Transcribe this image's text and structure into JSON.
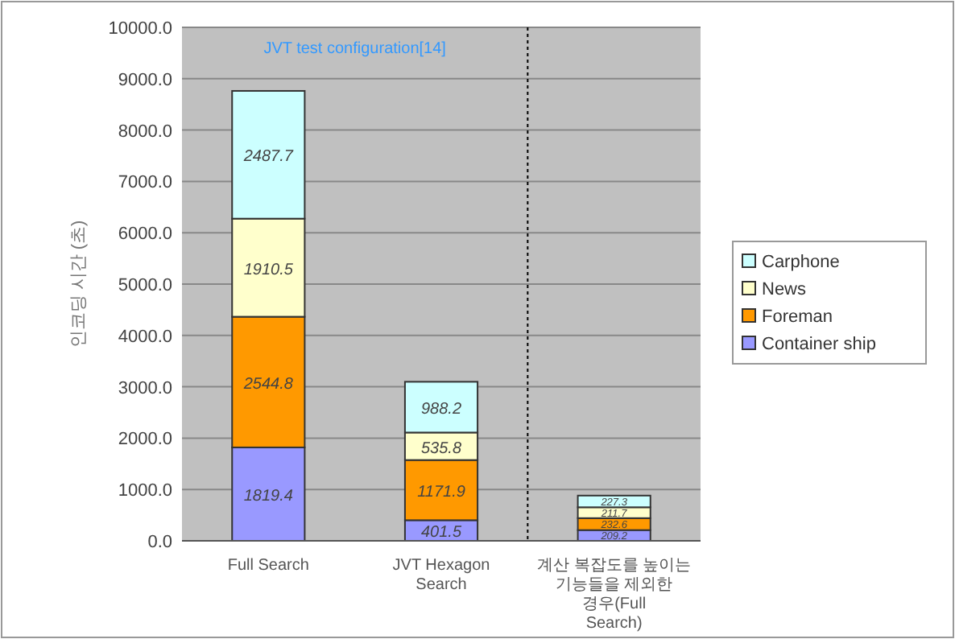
{
  "chart_data": {
    "type": "bar",
    "stacked": true,
    "ylabel": "인코딩 시간 (초)",
    "annotations": [
      "JVT test configuration[14]"
    ],
    "categories": [
      "Full Search",
      "JVT Hexagon Search",
      "계산 복잡도를 높이는 기능들을 제외한 경우(Full Search)"
    ],
    "series": [
      {
        "name": "Container ship",
        "color": "#9999ff",
        "values": [
          1819.4,
          401.5,
          209.2
        ]
      },
      {
        "name": "Foreman",
        "color": "#ff9900",
        "values": [
          2544.8,
          1171.9,
          232.6
        ]
      },
      {
        "name": "News",
        "color": "#ffffcc",
        "values": [
          1910.5,
          535.8,
          211.7
        ]
      },
      {
        "name": "Carphone",
        "color": "#ccffff",
        "values": [
          2487.7,
          988.2,
          227.3
        ]
      }
    ],
    "ylim": [
      0,
      10000
    ],
    "yticks": [
      {
        "value": 0,
        "label": "0.0"
      },
      {
        "value": 1000,
        "label": "1000.0"
      },
      {
        "value": 2000,
        "label": "2000.0"
      },
      {
        "value": 3000,
        "label": "3000.0"
      },
      {
        "value": 4000,
        "label": "4000.0"
      },
      {
        "value": 5000,
        "label": "5000.0"
      },
      {
        "value": 6000,
        "label": "6000.0"
      },
      {
        "value": 7000,
        "label": "7000.0"
      },
      {
        "value": 8000,
        "label": "8000.0"
      },
      {
        "value": 9000,
        "label": "9000.0"
      },
      {
        "value": 10000,
        "label": "10000.0"
      }
    ],
    "grid": "y",
    "legend": "right",
    "data_labels": true
  }
}
